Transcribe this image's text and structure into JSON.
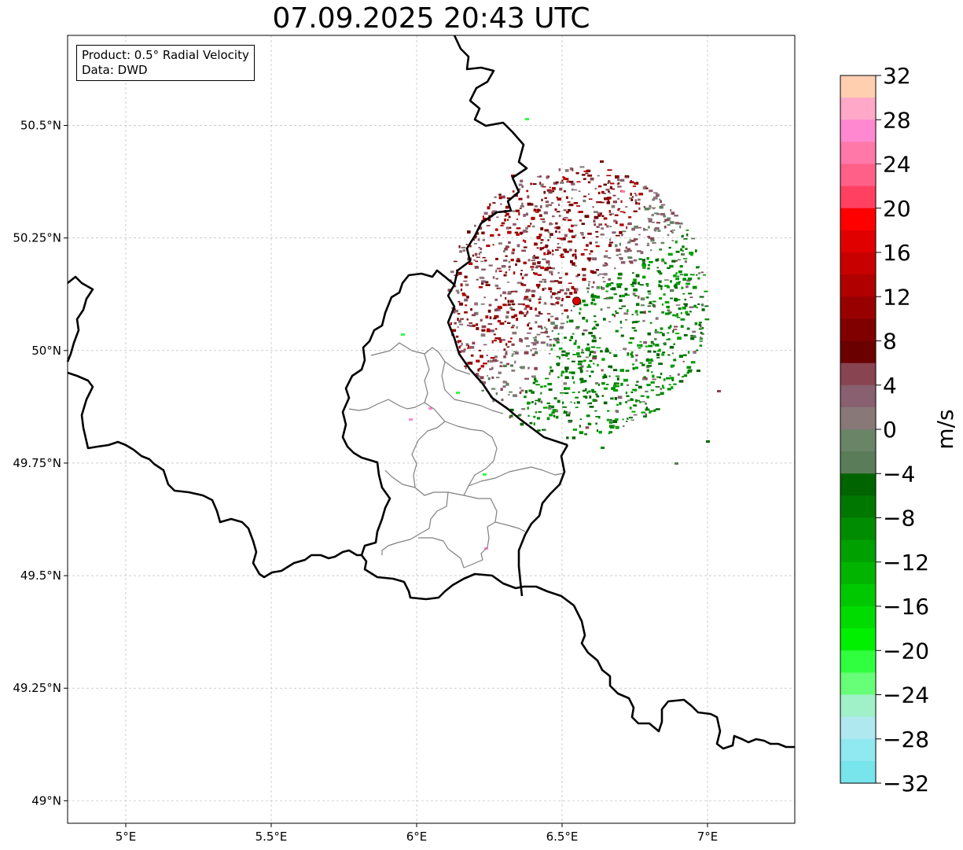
{
  "title": "07.09.2025 20:43 UTC",
  "info": {
    "product": "Product: 0.5° Radial Velocity",
    "data_source": "Data: DWD"
  },
  "axes": {
    "lon_ticks": [
      {
        "value": 5.0,
        "label": "5°E"
      },
      {
        "value": 5.5,
        "label": "5.5°E"
      },
      {
        "value": 6.0,
        "label": "6°E"
      },
      {
        "value": 6.5,
        "label": "6.5°E"
      },
      {
        "value": 7.0,
        "label": "7°E"
      }
    ],
    "lat_ticks": [
      {
        "value": 50.5,
        "label": "50.5°N"
      },
      {
        "value": 50.25,
        "label": "50.25°N"
      },
      {
        "value": 50.0,
        "label": "50°N"
      },
      {
        "value": 49.75,
        "label": "49.75°N"
      },
      {
        "value": 49.5,
        "label": "49.5°N"
      },
      {
        "value": 49.25,
        "label": "49.25°N"
      },
      {
        "value": 49.0,
        "label": "49°N"
      }
    ],
    "lon_range": [
      4.8,
      7.3
    ],
    "lat_range": [
      48.95,
      50.7
    ],
    "grid": true
  },
  "radar_site": {
    "lon": 6.55,
    "lat": 50.11,
    "color": "#e00000"
  },
  "colorbar": {
    "unit": "m/s",
    "min": -32,
    "max": 32,
    "step": 2,
    "tick_values": [
      32,
      28,
      24,
      20,
      16,
      12,
      8,
      4,
      0,
      -4,
      -8,
      -12,
      -16,
      -20,
      -24,
      -28,
      -32
    ],
    "tick_labels": [
      "32",
      "28",
      "24",
      "20",
      "16",
      "12",
      "8",
      "4",
      "0",
      "−4",
      "−8",
      "−12",
      "−16",
      "−20",
      "−24",
      "−28",
      "−32"
    ],
    "colors_top_to_bottom": [
      "#ffcfb0",
      "#ffa8c8",
      "#ff88d0",
      "#ff78a8",
      "#ff6088",
      "#ff4060",
      "#ff0000",
      "#e00000",
      "#c80000",
      "#b00000",
      "#980000",
      "#800000",
      "#6a0000",
      "#884450",
      "#886070",
      "#887878",
      "#6a8468",
      "#5a7c58",
      "#006400",
      "#007800",
      "#008c00",
      "#00a000",
      "#00b400",
      "#00c800",
      "#00dc00",
      "#00f000",
      "#30ff40",
      "#68ff78",
      "#a0f0c8",
      "#b0e8f0",
      "#90e8f0",
      "#78e4ec"
    ]
  },
  "map_colors": {
    "country_border": "#000000",
    "district_border": "#808080",
    "grid": "#b0b0b0"
  }
}
